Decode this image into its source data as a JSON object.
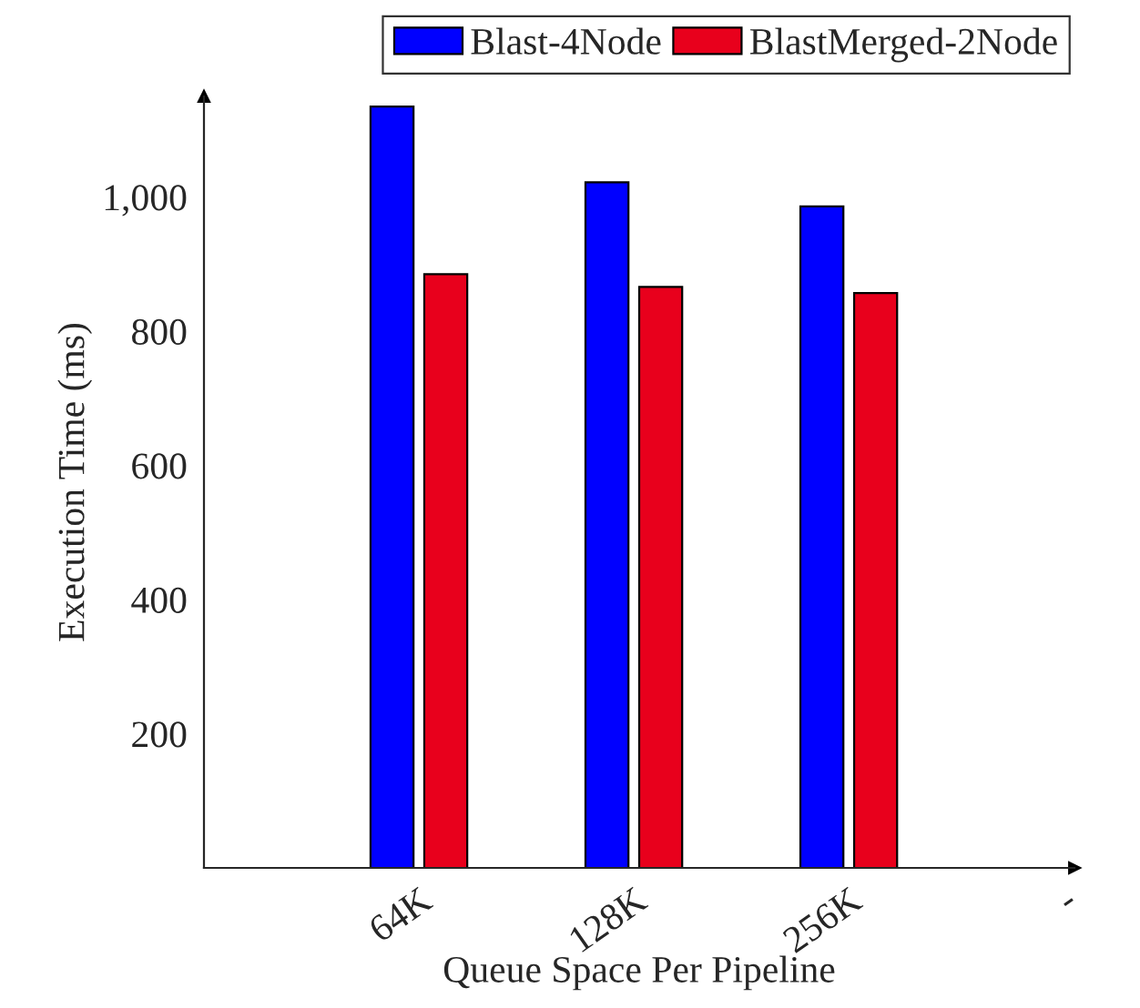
{
  "chart_data": {
    "type": "bar",
    "xlabel": "Queue Space Per Pipeline",
    "ylabel": "Execution Time (ms)",
    "categories": [
      null,
      "64K",
      "128K",
      "256K",
      "-"
    ],
    "series": [
      {
        "name": "Blast-4Node",
        "color": "#0000ff",
        "values": [
          null,
          1135,
          1022,
          986,
          null
        ]
      },
      {
        "name": "BlastMerged-2Node",
        "color": "#e8001c",
        "values": [
          null,
          885,
          866,
          857,
          null
        ]
      }
    ],
    "ylim": [
      0,
      1150
    ],
    "yticks": [
      200,
      400,
      600,
      800,
      {
        "value": 1000,
        "label": "1,000"
      }
    ],
    "grid": false,
    "legend": "top"
  }
}
